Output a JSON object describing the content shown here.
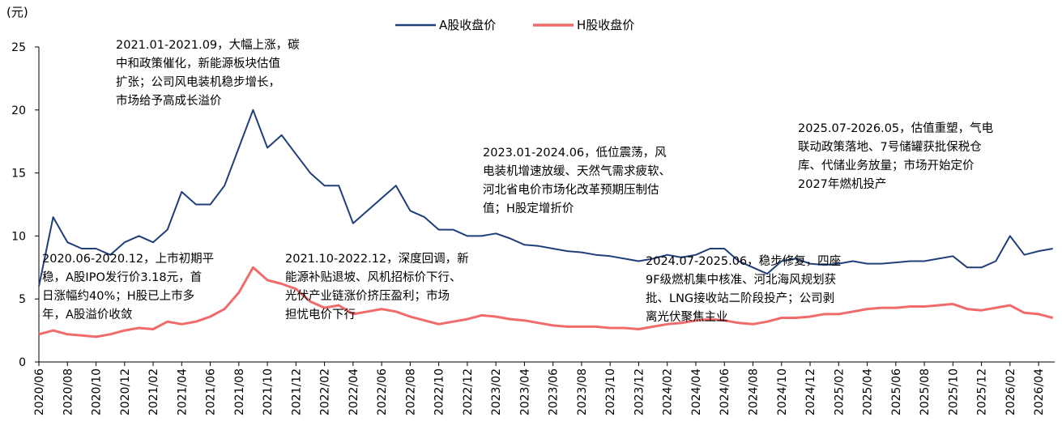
{
  "chart_data": {
    "type": "line",
    "y_label": "(元)",
    "x": [
      "2020/06",
      "2020/07",
      "2020/08",
      "2020/09",
      "2020/10",
      "2020/11",
      "2020/12",
      "2021/01",
      "2021/02",
      "2021/03",
      "2021/04",
      "2021/05",
      "2021/06",
      "2021/07",
      "2021/08",
      "2021/09",
      "2021/10",
      "2021/11",
      "2021/12",
      "2022/01",
      "2022/02",
      "2022/03",
      "2022/04",
      "2022/05",
      "2022/06",
      "2022/07",
      "2022/08",
      "2022/09",
      "2022/10",
      "2022/11",
      "2022/12",
      "2023/01",
      "2023/02",
      "2023/03",
      "2023/04",
      "2023/05",
      "2023/06",
      "2023/07",
      "2023/08",
      "2023/09",
      "2023/10",
      "2023/11",
      "2023/12",
      "2024/01",
      "2024/02",
      "2024/03",
      "2024/04",
      "2024/05",
      "2024/06",
      "2024/07",
      "2024/08",
      "2024/09",
      "2024/10",
      "2024/11",
      "2024/12",
      "2025/01",
      "2025/02",
      "2025/03",
      "2025/04",
      "2025/05",
      "2025/06",
      "2025/07",
      "2025/08",
      "2025/09",
      "2025/10",
      "2025/11",
      "2025/12",
      "2026/01",
      "2026/02",
      "2026/03",
      "2026/04",
      "2026/05"
    ],
    "series": [
      {
        "name": "A股收盘价",
        "color": "#1f3f7a",
        "values": [
          6,
          11.5,
          9.5,
          9,
          9,
          8.5,
          9.5,
          10,
          9.5,
          10.5,
          13.5,
          12.5,
          12.5,
          14,
          17,
          20,
          17,
          18,
          16.5,
          15,
          14,
          14,
          11,
          12,
          13,
          14,
          12,
          11.5,
          10.5,
          10.5,
          10,
          10,
          10.2,
          9.8,
          9.3,
          9.2,
          9,
          8.8,
          8.7,
          8.5,
          8.4,
          8.2,
          8,
          8.2,
          8.5,
          8.3,
          8.5,
          9,
          9,
          8,
          7.5,
          7,
          8,
          8.2,
          7.8,
          7.7,
          7.8,
          8,
          7.8,
          7.8,
          7.9,
          8,
          8,
          8.2,
          8.4,
          7.5,
          7.5,
          8,
          10,
          8.5,
          8.8,
          9
        ]
      },
      {
        "name": "H股收盘价",
        "color": "#f26b6b",
        "values": [
          2.2,
          2.5,
          2.2,
          2.1,
          2,
          2.2,
          2.5,
          2.7,
          2.6,
          3.2,
          3,
          3.2,
          3.6,
          4.2,
          5.5,
          7.5,
          6.5,
          6.2,
          5.8,
          4.8,
          4.3,
          4.5,
          3.8,
          4,
          4.2,
          4,
          3.6,
          3.3,
          3,
          3.2,
          3.4,
          3.7,
          3.6,
          3.4,
          3.3,
          3.1,
          2.9,
          2.8,
          2.8,
          2.8,
          2.7,
          2.7,
          2.6,
          2.8,
          3,
          3.1,
          3.3,
          3.4,
          3.3,
          3.1,
          3,
          3.2,
          3.5,
          3.5,
          3.6,
          3.8,
          3.8,
          4,
          4.2,
          4.3,
          4.3,
          4.4,
          4.4,
          4.5,
          4.6,
          4.2,
          4.1,
          4.3,
          4.5,
          3.9,
          3.8,
          3.5
        ]
      }
    ],
    "ylim": [
      0,
      25
    ],
    "yticks": [
      0,
      5,
      10,
      15,
      20,
      25
    ],
    "xticks": [
      "2020/06",
      "2020/08",
      "2020/10",
      "2020/12",
      "2021/02",
      "2021/04",
      "2021/06",
      "2021/08",
      "2021/10",
      "2021/12",
      "2022/02",
      "2022/04",
      "2022/06",
      "2022/08",
      "2022/10",
      "2022/12",
      "2023/02",
      "2023/04",
      "2023/06",
      "2023/08",
      "2023/10",
      "2023/12",
      "2024/02",
      "2024/04",
      "2024/06",
      "2024/08",
      "2024/10",
      "2024/12",
      "2025/02",
      "2025/04",
      "2025/06",
      "2025/08",
      "2025/10",
      "2025/12",
      "2026/02",
      "2026/04"
    ],
    "legend": "top",
    "annotations": [
      [
        "2021.01-2021.09，大幅上涨，碳",
        "中和政策催化，新能源板块估值",
        "扩张；公司风电装机稳步增长，",
        "市场给予高成长溢价"
      ],
      [
        "2020.06-2020.12，上市初期平",
        "稳，A股IPO发行价3.18元，首",
        "日涨幅约40%；H股已上市多",
        "年，A股溢价收敛"
      ],
      [
        "2021.10-2022.12，深度回调，新",
        "能源补贴退坡、风机招标价下行、",
        "光伏产业链涨价挤压盈利；市场",
        "担忧电价下行"
      ],
      [
        "2023.01-2024.06，低位震荡，风",
        "电装机增速放缓、天然气需求疲软、",
        "河北省电价市场化改革预期压制估",
        "值；H股定增折价"
      ],
      [
        "2024.07-2025.06，稳步修复，四座",
        "9F级燃机集中核准、河北海风规划获",
        "批、LNG接收站二阶段投产；公司剥",
        "离光伏聚焦主业"
      ],
      [
        "2025.07-2026.05，估值重塑，气电",
        "联动政策落地、7号储罐获批保税仓",
        "库、代储业务放量；市场开始定价",
        "2027年燃机投产"
      ]
    ]
  }
}
